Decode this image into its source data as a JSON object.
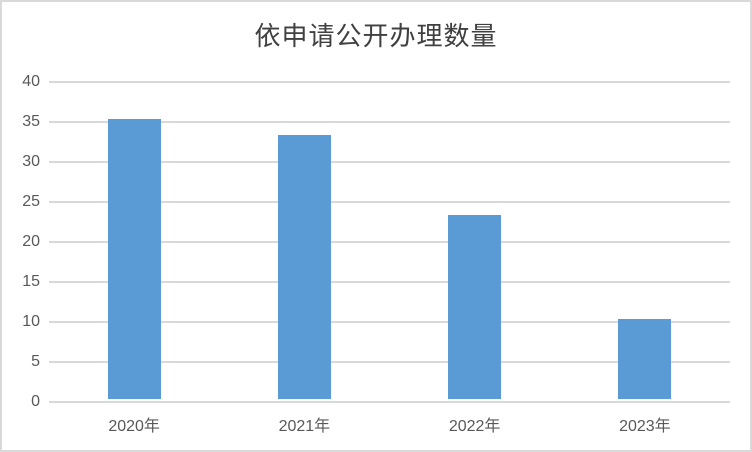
{
  "chart_data": {
    "type": "bar",
    "title": "依申请公开办理数量",
    "categories": [
      "2020年",
      "2021年",
      "2022年",
      "2023年"
    ],
    "values": [
      35,
      33,
      23,
      10
    ],
    "xlabel": "",
    "ylabel": "",
    "ylim": [
      0,
      40
    ],
    "yticks": [
      0,
      5,
      10,
      15,
      20,
      25,
      30,
      35,
      40
    ],
    "grid": true,
    "legend_position": "none",
    "colors": {
      "bar_fill": "#5B9BD5",
      "gridline": "#D9D9D9",
      "axis_line": "#D9D9D9",
      "tick_label": "#595959",
      "title": "#404040",
      "chart_border": "#D9D9D9",
      "background": "#FFFFFF"
    }
  }
}
